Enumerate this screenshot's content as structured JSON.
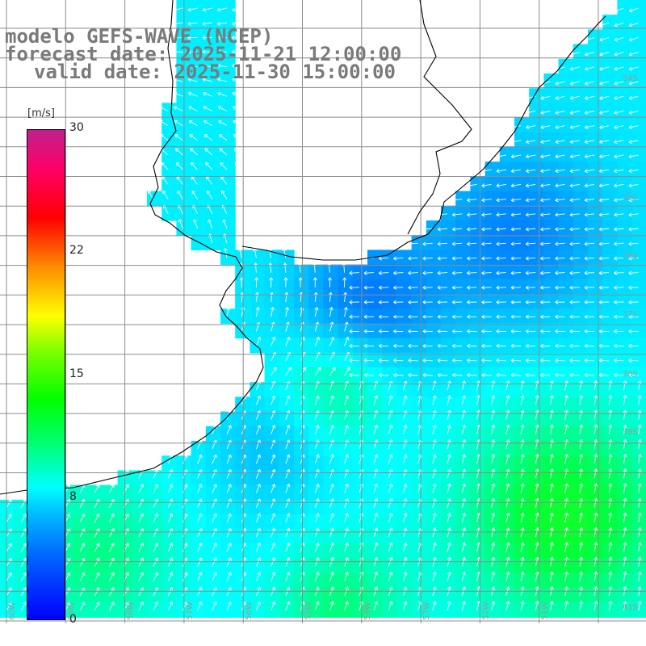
{
  "header": {
    "model_line": "modelo GEFS-WAVE (NCEP)",
    "forecast_line": "forecast date: 2025-11-21 12:00:00",
    "valid_line": "valid date: 2025-11-30 15:00:00"
  },
  "colorbar": {
    "unit": "[m/s]",
    "ticks": [
      "30",
      "22",
      "15",
      "8",
      "0"
    ],
    "tick_values": [
      30,
      22,
      15,
      8,
      0
    ],
    "colors": [
      "#0000ff",
      "#00c0ff",
      "#00ffff",
      "#00ff00",
      "#ffff00",
      "#ff8c00",
      "#ff0000",
      "#c0208c"
    ]
  },
  "map": {
    "variable": "wind speed and direction",
    "land_color": "#ffffff",
    "coastline_color": "#000000",
    "grid_color": "#8c8c8c",
    "arrow_color": "#ffffff",
    "lat_labels": [
      "34S",
      "35S",
      "36S",
      "37S",
      "38S",
      "39S",
      "41S"
    ],
    "lon_labels": [
      "60W",
      "59W",
      "58W",
      "57W",
      "56W",
      "55W",
      "54W",
      "53W",
      "52W",
      "51W"
    ]
  }
}
